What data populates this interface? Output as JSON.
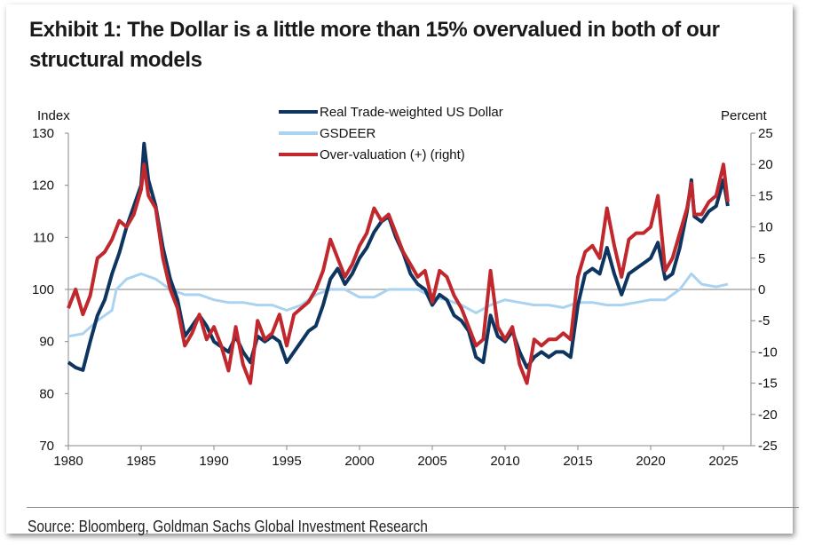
{
  "chart_data": {
    "type": "line",
    "title": "Exhibit 1: The Dollar is a little more than 15% overvalued in both of our structural models",
    "source": "Source: Bloomberg, Goldman Sachs Global Investment Research",
    "left_axis": {
      "label": "Index",
      "range": [
        70,
        130
      ],
      "ticks": [
        70,
        80,
        90,
        100,
        110,
        120,
        130
      ]
    },
    "right_axis": {
      "label": "Percent",
      "range": [
        -25,
        25
      ],
      "ticks": [
        -25,
        -20,
        -15,
        -10,
        -5,
        0,
        5,
        10,
        15,
        20,
        25
      ]
    },
    "x_axis": {
      "range": [
        1980,
        2026.8
      ],
      "ticks": [
        1980,
        1985,
        1990,
        1995,
        2000,
        2005,
        2010,
        2015,
        2020,
        2025
      ]
    },
    "grid": false,
    "legend_position": "top-center",
    "series": [
      {
        "name": "Real Trade-weighted US Dollar",
        "axis": "left",
        "color": "#0d3560",
        "x": [
          1980,
          1980.5,
          1981,
          1981.5,
          1982,
          1982.5,
          1983,
          1983.5,
          1984,
          1984.5,
          1985,
          1985.2,
          1985.5,
          1986,
          1986.5,
          1987,
          1987.5,
          1988,
          1988.5,
          1989,
          1989.5,
          1990,
          1990.5,
          1991,
          1991.5,
          1992,
          1992.5,
          1993,
          1993.5,
          1994,
          1994.5,
          1995,
          1995.5,
          1996,
          1996.5,
          1997,
          1997.5,
          1998,
          1998.5,
          1999,
          1999.5,
          2000,
          2000.5,
          2001,
          2001.5,
          2002,
          2002.5,
          2003,
          2003.5,
          2004,
          2004.5,
          2005,
          2005.5,
          2006,
          2006.5,
          2007,
          2007.5,
          2008,
          2008.5,
          2009,
          2009.5,
          2010,
          2010.5,
          2011,
          2011.5,
          2012,
          2012.5,
          2013,
          2013.5,
          2014,
          2014.5,
          2015,
          2015.5,
          2016,
          2016.5,
          2017,
          2017.5,
          2018,
          2018.5,
          2019,
          2019.5,
          2020,
          2020.5,
          2021,
          2021.5,
          2022,
          2022.5,
          2022.8,
          2023,
          2023.5,
          2024,
          2024.5,
          2025,
          2025.3
        ],
        "y": [
          86,
          85,
          84.5,
          90,
          95,
          98,
          103,
          107,
          112,
          116,
          120,
          128,
          121,
          116,
          108,
          102,
          98,
          91,
          93,
          95,
          93,
          90,
          89,
          88,
          91,
          88,
          86,
          91,
          90,
          91,
          90,
          86,
          88,
          90,
          92,
          93,
          97,
          102,
          104,
          101,
          103,
          106,
          108,
          111,
          113,
          114,
          110,
          107,
          103,
          101,
          100,
          97,
          99,
          98,
          95,
          94,
          92,
          87,
          86,
          95,
          91,
          90,
          92,
          88,
          85,
          87,
          88,
          87,
          88,
          88,
          87,
          97,
          103,
          104,
          103,
          108,
          103,
          99,
          103,
          104,
          105,
          106,
          109,
          102,
          103,
          108,
          115,
          121,
          114,
          113,
          115,
          116,
          121,
          116
        ]
      },
      {
        "name": "GSDEER",
        "axis": "left",
        "color": "#a9d3f0",
        "x": [
          1980,
          1981,
          1982,
          1983,
          1983.3,
          1984,
          1985,
          1986,
          1987,
          1988,
          1989,
          1990,
          1991,
          1992,
          1993,
          1994,
          1995,
          1996,
          1997,
          1998,
          1999,
          2000,
          2001,
          2002,
          2003,
          2004,
          2005,
          2006,
          2007,
          2008,
          2009,
          2010,
          2011,
          2012,
          2013,
          2014,
          2015,
          2016,
          2017,
          2018,
          2019,
          2020,
          2021,
          2022,
          2022.8,
          2023.5,
          2024.5,
          2025.3
        ],
        "y": [
          91,
          91.5,
          94,
          96,
          100,
          102,
          103,
          102,
          100,
          99,
          99,
          98,
          97.5,
          97.5,
          97,
          97,
          96,
          97,
          99,
          100,
          100,
          98.5,
          98.5,
          100,
          100,
          100,
          98.5,
          98,
          97,
          95.5,
          97,
          98,
          97.5,
          97,
          97,
          96.5,
          97.5,
          97.5,
          97,
          97,
          97.5,
          98,
          98,
          100,
          103,
          101,
          100.5,
          101
        ]
      },
      {
        "name": "Over-valuation (+) (right)",
        "axis": "right",
        "color": "#c0282d",
        "x": [
          1980,
          1980.5,
          1981,
          1981.5,
          1982,
          1982.5,
          1983,
          1983.5,
          1984,
          1984.5,
          1985,
          1985.2,
          1985.5,
          1986,
          1986.5,
          1987,
          1987.5,
          1988,
          1988.5,
          1989,
          1989.5,
          1990,
          1990.5,
          1991,
          1991.5,
          1992,
          1992.5,
          1993,
          1993.5,
          1994,
          1994.5,
          1995,
          1995.5,
          1996,
          1996.5,
          1997,
          1997.5,
          1998,
          1998.5,
          1999,
          1999.5,
          2000,
          2000.5,
          2001,
          2001.5,
          2002,
          2002.5,
          2003,
          2003.5,
          2004,
          2004.5,
          2005,
          2005.5,
          2006,
          2006.5,
          2007,
          2007.5,
          2008,
          2008.5,
          2009,
          2009.5,
          2010,
          2010.5,
          2011,
          2011.5,
          2012,
          2012.5,
          2013,
          2013.5,
          2014,
          2014.5,
          2015,
          2015.5,
          2016,
          2016.5,
          2017,
          2017.5,
          2018,
          2018.5,
          2019,
          2019.5,
          2020,
          2020.5,
          2021,
          2021.5,
          2022,
          2022.5,
          2022.8,
          2023,
          2023.5,
          2024,
          2024.5,
          2025,
          2025.3
        ],
        "y": [
          -3,
          0,
          -4,
          -1,
          5,
          6,
          8,
          11,
          10,
          12,
          16,
          20,
          15,
          13,
          5,
          0,
          -3,
          -9,
          -7,
          -4,
          -8,
          -6,
          -9,
          -13,
          -6,
          -12,
          -15,
          -5,
          -8,
          -7,
          -4,
          -9,
          -4,
          -3,
          -2,
          0,
          3,
          8,
          5,
          2,
          4,
          7,
          9,
          13,
          11,
          12,
          9,
          6,
          4,
          2,
          3,
          -2,
          3,
          2,
          -1,
          -3,
          -6,
          -9,
          -8,
          3,
          -6,
          -8,
          -6,
          -12,
          -15,
          -8,
          -9,
          -8,
          -8,
          -7,
          -8,
          2,
          6,
          7,
          5,
          13,
          7,
          2,
          8,
          9,
          9,
          10,
          15,
          3,
          5,
          9,
          13,
          17,
          12,
          12,
          14,
          15,
          20,
          14
        ]
      }
    ]
  }
}
